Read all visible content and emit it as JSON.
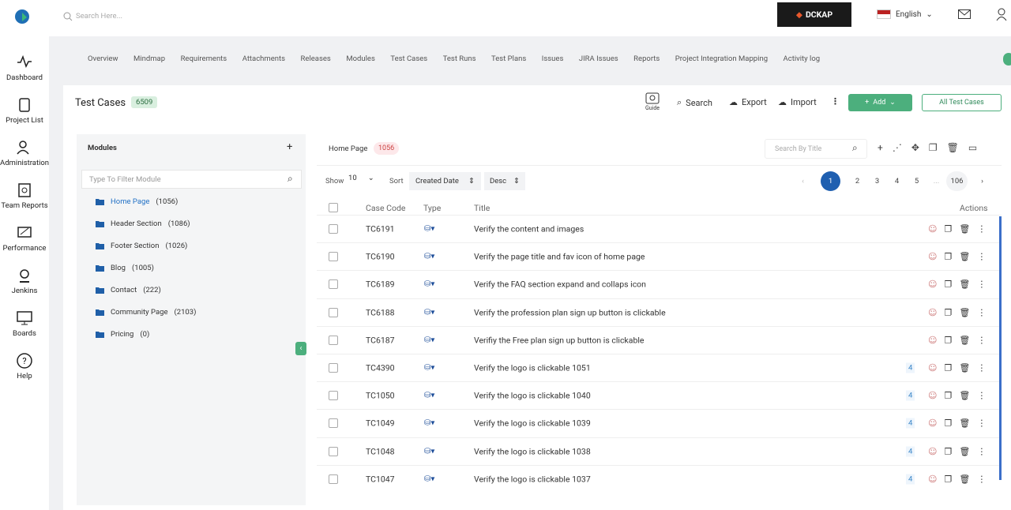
{
  "topbar": {
    "search_placeholder": "Search Here...",
    "brand": "DCKAP",
    "language": "English"
  },
  "sidebar": [
    "Dashboard",
    "Project List",
    "Administration",
    "Team Reports",
    "Performance",
    "Jenkins",
    "Boards",
    "Help"
  ],
  "tabs": [
    "Overview",
    "Mindmap",
    "Requirements",
    "Attachments",
    "Releases",
    "Modules",
    "Test Cases",
    "Test Runs",
    "Test Plans",
    "Issues",
    "JIRA Issues",
    "Reports",
    "Project Integration Mapping",
    "Activity log"
  ],
  "header": {
    "title": "Test Cases",
    "count": "6509"
  },
  "toolbar": {
    "guide": "Guide",
    "search": "Search",
    "export": "Export",
    "import": "Import",
    "add": "Add",
    "all": "All Test Cases"
  },
  "modules": {
    "title": "Modules",
    "filter_placeholder": "Type To Filter Module",
    "items": [
      {
        "name": "Home Page",
        "count": "(1056)"
      },
      {
        "name": "Header Section",
        "count": "(1086)"
      },
      {
        "name": "Footer Section",
        "count": "(1026)"
      },
      {
        "name": "Blog",
        "count": "(1005)"
      },
      {
        "name": "Contact",
        "count": "(222)"
      },
      {
        "name": "Community Page",
        "count": "(2103)"
      },
      {
        "name": "Pricing",
        "count": "(0)"
      }
    ]
  },
  "panel": {
    "title": "Home Page",
    "count": "1056",
    "search_placeholder": "Search By Title",
    "show_label": "Show",
    "show_value": "10",
    "sort_label": "Sort",
    "sort_value": "Created Date",
    "order": "Desc",
    "pages": [
      "1",
      "2",
      "3",
      "4",
      "5",
      "...",
      "106"
    ]
  },
  "table": {
    "columns": {
      "code": "Case Code",
      "type": "Type",
      "title": "Title",
      "actions": "Actions"
    },
    "rows": [
      {
        "code": "TC6191",
        "title": "Verify the content and images"
      },
      {
        "code": "TC6190",
        "title": "Verify the page title and fav icon of home page"
      },
      {
        "code": "TC6189",
        "title": "Verify the FAQ section expand and collaps icon"
      },
      {
        "code": "TC6188",
        "title": "Verify the profession plan sign up button is clickable"
      },
      {
        "code": "TC6187",
        "title": "Verifiy the Free plan sign up button is clickable"
      },
      {
        "code": "TC4390",
        "title": "Verify the logo is clickable 1051",
        "badge": "4"
      },
      {
        "code": "TC1050",
        "title": "Verify the logo is clickable 1040",
        "badge": "4"
      },
      {
        "code": "TC1049",
        "title": "Verify the logo is clickable 1039",
        "badge": "4"
      },
      {
        "code": "TC1048",
        "title": "Verify the logo is clickable 1038",
        "badge": "4"
      },
      {
        "code": "TC1047",
        "title": "Verify the logo is clickable 1037",
        "badge": "4"
      }
    ]
  }
}
